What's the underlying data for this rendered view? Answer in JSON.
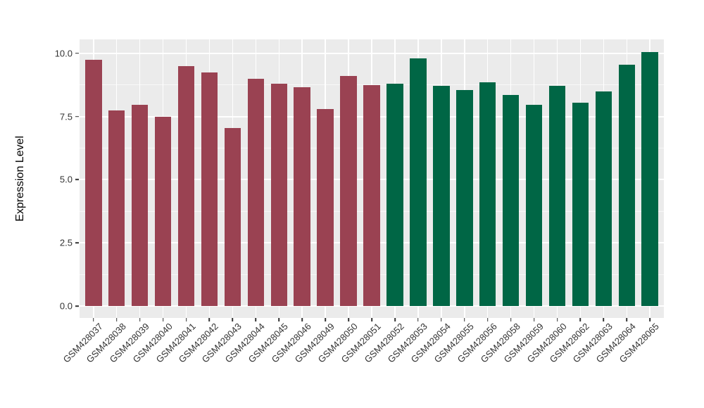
{
  "figure": {
    "background_color": "#FFFFFF",
    "panel_background_color": "#EBEBEB",
    "gridline_color": "#FFFFFF",
    "axis_text_color": "#333333",
    "axis_title_color": "#000000"
  },
  "chart_data": {
    "type": "bar",
    "title": "",
    "xlabel": "",
    "ylabel": "Expression Level",
    "ylim": [
      -0.5,
      10.55
    ],
    "yticks": [
      "0.0",
      "2.5",
      "5.0",
      "7.5",
      "10.0"
    ],
    "ytick_values": [
      0,
      2.5,
      5,
      7.5,
      10
    ],
    "minor_ytick_values": [
      1.25,
      3.75,
      6.25,
      8.75
    ],
    "grid": "horizontal major+minor, vertical major at each category",
    "legend_position": "none",
    "categories": [
      "GSM428037",
      "GSM428038",
      "GSM428039",
      "GSM428040",
      "GSM428041",
      "GSM428042",
      "GSM428043",
      "GSM428044",
      "GSM428045",
      "GSM428046",
      "GSM428049",
      "GSM428050",
      "GSM428051",
      "GSM428052",
      "GSM428053",
      "GSM428054",
      "GSM428055",
      "GSM428056",
      "GSM428058",
      "GSM428059",
      "GSM428060",
      "GSM428062",
      "GSM428063",
      "GSM428064",
      "GSM428065"
    ],
    "values": [
      9.75,
      7.75,
      7.95,
      7.5,
      9.5,
      9.25,
      7.05,
      9.0,
      8.8,
      8.65,
      7.8,
      9.1,
      8.75,
      8.8,
      9.8,
      8.7,
      8.55,
      8.85,
      8.35,
      7.95,
      8.7,
      8.05,
      8.5,
      9.55,
      10.05
    ],
    "bar_color_groups": [
      {
        "color": "#9A4252",
        "from": "GSM428037",
        "to": "GSM428051"
      },
      {
        "color": "#006645",
        "from": "GSM428052",
        "to": "GSM428065"
      }
    ]
  }
}
